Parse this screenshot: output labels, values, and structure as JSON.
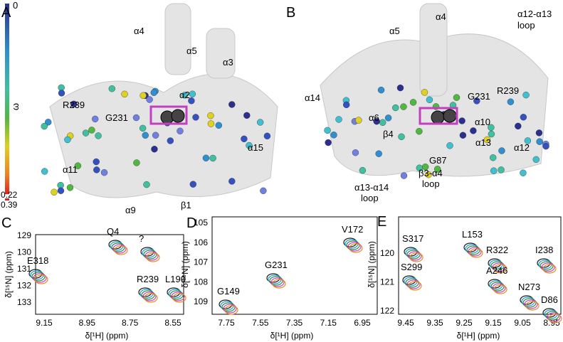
{
  "colorbar": {
    "top": "0",
    "symbol": "ω",
    "low1": "0.22",
    "low2": "0.39"
  },
  "panel_a": {
    "letter": "A",
    "labels": [
      "α4",
      "α5",
      "α3",
      "α2",
      "R239",
      "G231",
      "α15",
      "α11",
      "α9",
      "β1"
    ]
  },
  "panel_b": {
    "letter": "B",
    "labels": [
      "α5",
      "α4",
      "α12-α13",
      "loop",
      "α14",
      "α6",
      "G231",
      "R239",
      "α10",
      "β4",
      "α13",
      "α12",
      "G87",
      "β3-α4",
      "loop",
      "α13-α14",
      "loop"
    ]
  },
  "panel_c": {
    "letter": "C",
    "labels": [
      "Q4",
      "?",
      "E318",
      "R239",
      "L190"
    ],
    "xticks": [
      "9.15",
      "8.95",
      "8.75",
      "8.55"
    ],
    "yticks": [
      "129",
      "130",
      "131",
      "132",
      "133"
    ],
    "xlabel": "δ[¹H] (ppm)",
    "ylabel": "δ[¹⁵N] (ppm)"
  },
  "panel_d": {
    "letter": "D",
    "labels": [
      "V172",
      "G149",
      "G231"
    ],
    "xticks": [
      "7.75",
      "7.55",
      "7.35",
      "7.15",
      "6.95"
    ],
    "yticks": [
      "105",
      "106",
      "107",
      "108",
      "109"
    ],
    "xlabel": "δ[¹H] (ppm)",
    "ylabel": "δ[¹⁵N] (ppm)"
  },
  "panel_e": {
    "letter": "E",
    "labels": [
      "S317",
      "L153",
      "R322",
      "I238",
      "S299",
      "A246",
      "N273",
      "D86"
    ],
    "xticks": [
      "9.45",
      "9.35",
      "9.25",
      "9.15",
      "9.05",
      "8.95"
    ],
    "yticks": [
      "120",
      "121",
      "122"
    ],
    "xlabel": "δ[¹H] (ppm)",
    "ylabel": "δ[¹⁵N] (ppm)"
  }
}
